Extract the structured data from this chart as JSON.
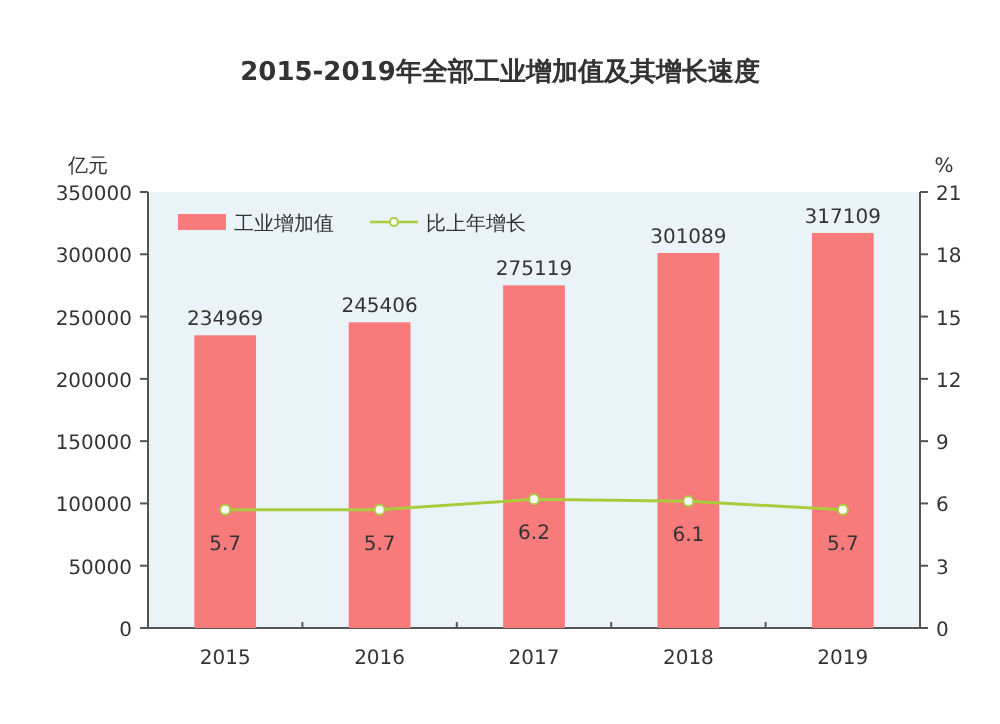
{
  "chart_data": {
    "type": "bar",
    "title": "2015-2019年全部工业增加值及其增长速度",
    "ylabel": "亿元",
    "y2label": "%",
    "categories": [
      "2015",
      "2016",
      "2017",
      "2018",
      "2019"
    ],
    "series": [
      {
        "name": "工业增加值",
        "color": "#f87b7b",
        "values": [
          234969,
          245406,
          275119,
          301089,
          317109
        ]
      },
      {
        "name": "比上年增长",
        "type": "line",
        "axis": "y2",
        "color": "#a8cc3c",
        "marker": "circle",
        "values": [
          5.7,
          5.7,
          6.2,
          6.1,
          5.7
        ]
      }
    ],
    "ylim": [
      0,
      350000
    ],
    "yticks": [
      0,
      50000,
      100000,
      150000,
      200000,
      250000,
      300000,
      350000
    ],
    "y2lim": [
      0,
      21
    ],
    "y2ticks": [
      0,
      3,
      6,
      9,
      12,
      15,
      18,
      21
    ],
    "data_labels": true,
    "legend": "top left"
  }
}
